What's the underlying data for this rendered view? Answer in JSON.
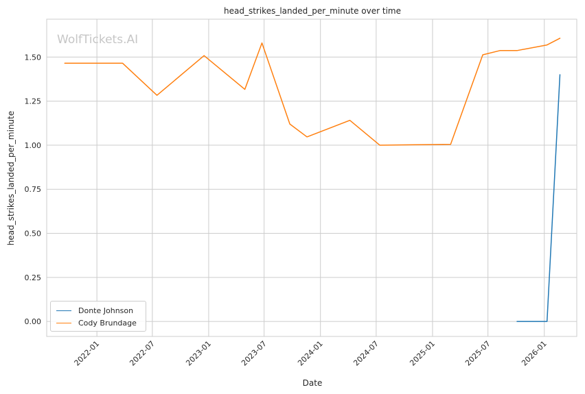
{
  "watermark": "WolfTickets.AI",
  "chart_data": {
    "type": "line",
    "title": "head_strikes_landed_per_minute over time",
    "xlabel": "Date",
    "ylabel": "head_strikes_landed_per_minute",
    "xlim": [
      "2021-07-21",
      "2026-04-17"
    ],
    "ylim": [
      -0.085,
      1.715
    ],
    "x_ticks": [
      "2022-01-01",
      "2022-07-01",
      "2023-01-01",
      "2023-07-01",
      "2024-01-01",
      "2024-07-01",
      "2025-01-01",
      "2025-07-01",
      "2026-01-01"
    ],
    "x_tick_labels": [
      "2022-01",
      "2022-07",
      "2023-01",
      "2023-07",
      "2024-01",
      "2024-07",
      "2025-01",
      "2025-07",
      "2026-01"
    ],
    "y_ticks": [
      0.0,
      0.25,
      0.5,
      0.75,
      1.0,
      1.25,
      1.5
    ],
    "y_tick_labels": [
      "0.00",
      "0.25",
      "0.50",
      "0.75",
      "1.00",
      "1.25",
      "1.50"
    ],
    "grid": true,
    "legend": "lower-left",
    "series": [
      {
        "name": "Donte Johnson",
        "color": "#1f77b4",
        "points": [
          [
            "2025-10-04",
            0.0
          ],
          [
            "2026-01-10",
            0.0
          ],
          [
            "2026-02-21",
            1.4
          ]
        ]
      },
      {
        "name": "Cody Brundage",
        "color": "#ff7f0e",
        "points": [
          [
            "2021-09-18",
            1.465
          ],
          [
            "2022-03-26",
            1.465
          ],
          [
            "2022-07-16",
            1.283
          ],
          [
            "2022-12-17",
            1.508
          ],
          [
            "2023-04-29",
            1.317
          ],
          [
            "2023-06-24",
            1.58
          ],
          [
            "2023-09-23",
            1.12
          ],
          [
            "2023-11-18",
            1.047
          ],
          [
            "2024-04-06",
            1.141
          ],
          [
            "2024-07-13",
            1.0
          ],
          [
            "2025-03-01",
            1.005
          ],
          [
            "2025-06-14",
            1.513
          ],
          [
            "2025-08-09",
            1.537
          ],
          [
            "2025-10-04",
            1.537
          ],
          [
            "2026-01-10",
            1.569
          ],
          [
            "2026-02-21",
            1.607
          ]
        ]
      }
    ]
  }
}
